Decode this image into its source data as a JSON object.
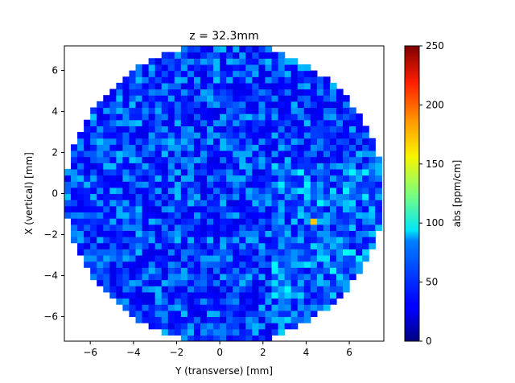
{
  "chart_data": {
    "type": "heatmap",
    "title": "z = 32.3mm",
    "xlabel": "Y (transverse) [mm]",
    "ylabel": "X (vertical) [mm]",
    "xlim": [
      -7.2,
      7.6
    ],
    "ylim": [
      -7.2,
      7.2
    ],
    "x_ticks": [
      -6,
      -4,
      -2,
      0,
      2,
      4,
      6
    ],
    "y_ticks": [
      -6,
      -4,
      -2,
      0,
      2,
      4,
      6
    ],
    "x_tick_labels": [
      "−6",
      "−4",
      "−2",
      "0",
      "2",
      "4",
      "6"
    ],
    "y_tick_labels": [
      "−6",
      "−4",
      "−2",
      "0",
      "2",
      "4",
      "6"
    ],
    "colorbar": {
      "label": "abs [ppm/cm]",
      "min": 0,
      "max": 250,
      "ticks": [
        0,
        50,
        100,
        150,
        200,
        250
      ],
      "tick_labels": [
        "0",
        "50",
        "100",
        "150",
        "200",
        "250"
      ],
      "colormap": "jet"
    },
    "grid_shape": {
      "cell_size_mm": 0.3,
      "center_x": 0.2,
      "center_y": 0.0,
      "radius_mm": 7.35
    },
    "value_summary": {
      "typical_range": [
        25,
        80
      ],
      "mean": 45,
      "hotspot": {
        "y_mm": 4.3,
        "x_mm": -1.3,
        "value": 170
      }
    }
  }
}
